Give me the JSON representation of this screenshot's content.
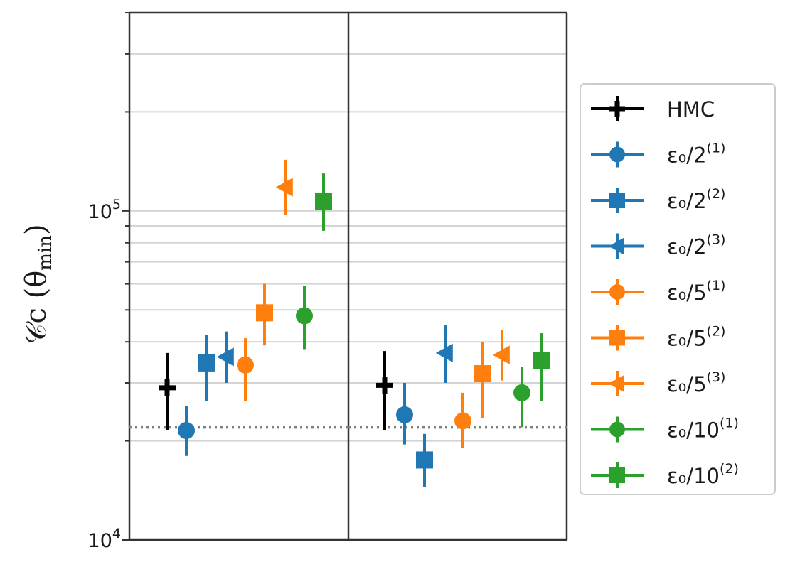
{
  "chart_data": {
    "type": "scatter",
    "title": "",
    "xlabel": "",
    "ylabel": "𝒞c (θ",
    "ylabel_sub": "min",
    "ylabel_close": ")",
    "yscale": "log",
    "ylim": [
      10000,
      400000
    ],
    "yticks": [
      {
        "value": 10000,
        "base": "10",
        "exp": "4"
      },
      {
        "value": 100000,
        "base": "10",
        "exp": "5"
      }
    ],
    "grid": "horizontal minor",
    "legend_position": "right",
    "reference_line": {
      "value": 22000,
      "style": "dotted",
      "color": "#7f7f7f"
    },
    "panels": [
      {
        "name": "left",
        "points": [
          {
            "series": "HMC",
            "y": 29000,
            "lo": 21500,
            "hi": 37000
          },
          {
            "series": "eps2_1",
            "y": 21500,
            "lo": 18000,
            "hi": 25500
          },
          {
            "series": "eps2_2",
            "y": 34500,
            "lo": 26500,
            "hi": 42000
          },
          {
            "series": "eps2_3",
            "y": 36000,
            "lo": 30000,
            "hi": 43000
          },
          {
            "series": "eps5_1",
            "y": 34000,
            "lo": 26500,
            "hi": 41000
          },
          {
            "series": "eps5_2",
            "y": 49000,
            "lo": 39000,
            "hi": 60000
          },
          {
            "series": "eps5_3",
            "y": 118000,
            "lo": 97000,
            "hi": 143000
          },
          {
            "series": "eps10_1",
            "y": 48000,
            "lo": 38000,
            "hi": 59000
          },
          {
            "series": "eps10_2",
            "y": 107000,
            "lo": 87000,
            "hi": 130000
          }
        ]
      },
      {
        "name": "right",
        "points": [
          {
            "series": "HMC",
            "y": 29500,
            "lo": 21500,
            "hi": 37500
          },
          {
            "series": "eps2_1",
            "y": 24000,
            "lo": 19500,
            "hi": 30000
          },
          {
            "series": "eps2_2",
            "y": 17500,
            "lo": 14500,
            "hi": 21000
          },
          {
            "series": "eps2_3",
            "y": 37000,
            "lo": 30000,
            "hi": 45000
          },
          {
            "series": "eps5_1",
            "y": 23000,
            "lo": 19000,
            "hi": 28000
          },
          {
            "series": "eps5_2",
            "y": 32000,
            "lo": 23500,
            "hi": 40000
          },
          {
            "series": "eps5_3",
            "y": 36500,
            "lo": 30500,
            "hi": 43500
          },
          {
            "series": "eps10_1",
            "y": 28000,
            "lo": 22000,
            "hi": 33500
          },
          {
            "series": "eps10_2",
            "y": 35000,
            "lo": 26500,
            "hi": 42500
          }
        ]
      }
    ],
    "series": [
      {
        "id": "HMC",
        "label_main": "HMC",
        "label_sup": "",
        "color": "#000000",
        "marker": "plus"
      },
      {
        "id": "eps2_1",
        "label_main": "ε₀/2",
        "label_sup": "(1)",
        "color": "#1f77b4",
        "marker": "circle"
      },
      {
        "id": "eps2_2",
        "label_main": "ε₀/2",
        "label_sup": "(2)",
        "color": "#1f77b4",
        "marker": "square"
      },
      {
        "id": "eps2_3",
        "label_main": "ε₀/2",
        "label_sup": "(3)",
        "color": "#1f77b4",
        "marker": "triangle-left"
      },
      {
        "id": "eps5_1",
        "label_main": "ε₀/5",
        "label_sup": "(1)",
        "color": "#ff7f0e",
        "marker": "circle"
      },
      {
        "id": "eps5_2",
        "label_main": "ε₀/5",
        "label_sup": "(2)",
        "color": "#ff7f0e",
        "marker": "square"
      },
      {
        "id": "eps5_3",
        "label_main": "ε₀/5",
        "label_sup": "(3)",
        "color": "#ff7f0e",
        "marker": "triangle-left"
      },
      {
        "id": "eps10_1",
        "label_main": "ε₀/10",
        "label_sup": "(1)",
        "color": "#2ca02c",
        "marker": "circle"
      },
      {
        "id": "eps10_2",
        "label_main": "ε₀/10",
        "label_sup": "(2)",
        "color": "#2ca02c",
        "marker": "square"
      }
    ]
  }
}
